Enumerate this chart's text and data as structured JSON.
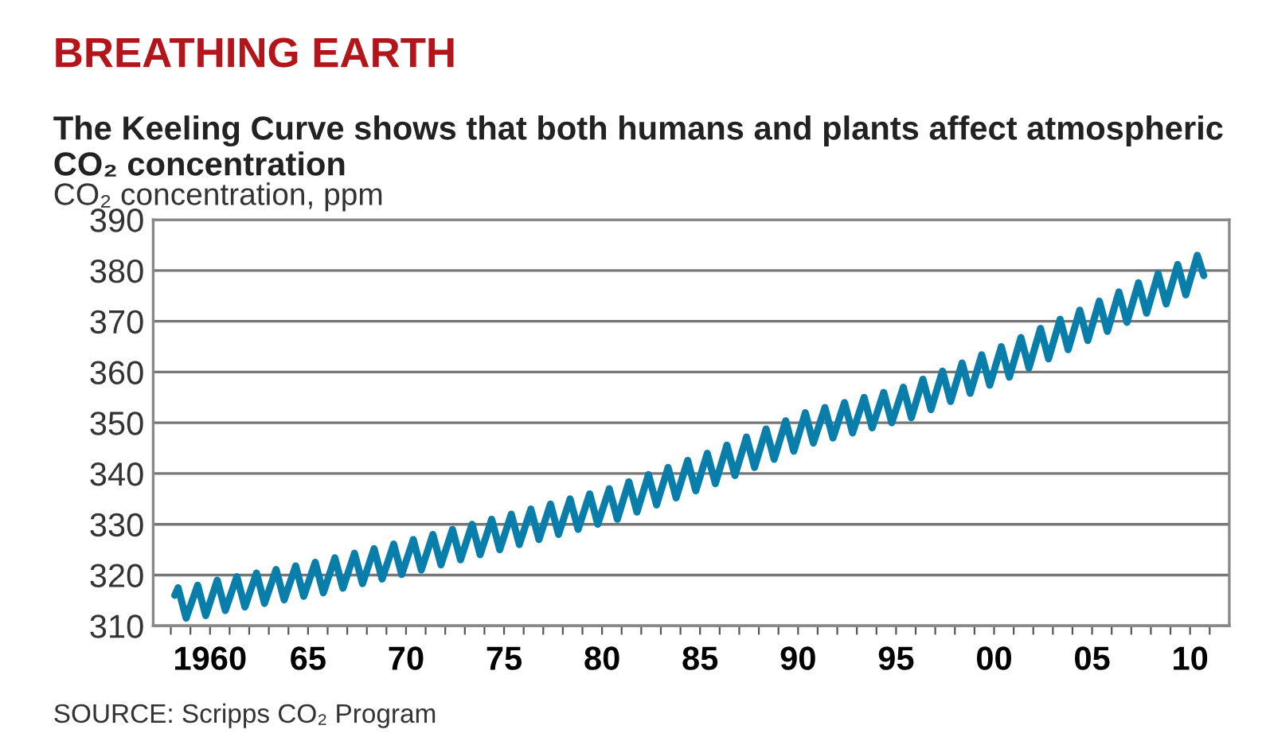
{
  "chart_data": {
    "type": "line",
    "title": "BREATHING EARTH",
    "subtitle": "The Keeling Curve shows that both humans and plants affect atmospheric CO₂ concentration",
    "ylabel": "CO₂ concentration, ppm",
    "annotations": [
      "SOURCE: Scripps CO₂ Program"
    ],
    "series": [
      {
        "color": "#0a7eab",
        "x": [
          1958.2,
          1958.37,
          1958.78,
          1959.37,
          1959.78,
          1960.37,
          1960.78,
          1961.37,
          1961.78,
          1962.37,
          1962.78,
          1963.37,
          1963.78,
          1964.37,
          1964.78,
          1965.37,
          1965.78,
          1966.37,
          1966.78,
          1967.37,
          1967.78,
          1968.37,
          1968.78,
          1969.37,
          1969.78,
          1970.37,
          1970.78,
          1971.37,
          1971.78,
          1972.37,
          1972.78,
          1973.37,
          1973.78,
          1974.37,
          1974.78,
          1975.37,
          1975.78,
          1976.37,
          1976.78,
          1977.37,
          1977.78,
          1978.37,
          1978.78,
          1979.37,
          1979.78,
          1980.37,
          1980.78,
          1981.37,
          1981.78,
          1982.37,
          1982.78,
          1983.37,
          1983.78,
          1984.37,
          1984.78,
          1985.37,
          1985.78,
          1986.37,
          1986.78,
          1987.37,
          1987.78,
          1988.37,
          1988.78,
          1989.37,
          1989.78,
          1990.37,
          1990.78,
          1991.37,
          1991.78,
          1992.37,
          1992.78,
          1993.37,
          1993.78,
          1994.37,
          1994.78,
          1995.37,
          1995.78,
          1996.37,
          1996.78,
          1997.37,
          1997.78,
          1998.37,
          1998.78,
          1999.37,
          1999.78,
          2000.37,
          2000.78,
          2001.37,
          2001.78,
          2002.37,
          2002.78,
          2003.37,
          2003.78,
          2004.37,
          2004.78,
          2005.37,
          2005.78,
          2006.37,
          2006.78,
          2007.37,
          2007.78,
          2008.37,
          2008.78,
          2009.37,
          2009.78,
          2010.37,
          2010.7
        ],
        "values": [
          316,
          317.5,
          311.5,
          318,
          312,
          319,
          313,
          319.7,
          313.7,
          320.4,
          314.4,
          321.1,
          315.1,
          321.8,
          315.8,
          322.5,
          316.5,
          323.4,
          317.4,
          324.3,
          318.3,
          325.2,
          319.2,
          326.1,
          320.1,
          327,
          321,
          328,
          322,
          329,
          323,
          330,
          324,
          331,
          325,
          332,
          326,
          333,
          327,
          334,
          328,
          335,
          329,
          336,
          330,
          337,
          331,
          338.4,
          332.4,
          339.8,
          333.8,
          341.2,
          335.2,
          342.6,
          336.6,
          344,
          338,
          345.6,
          339.6,
          347.2,
          341.2,
          348.8,
          342.8,
          350.4,
          344.4,
          352,
          346,
          353,
          347,
          354,
          348,
          355,
          349,
          356,
          350,
          357,
          351,
          358.6,
          352.6,
          360.2,
          354.2,
          361.8,
          355.8,
          363.4,
          357.4,
          365,
          359,
          366.8,
          360.8,
          368.6,
          362.6,
          370.4,
          364.4,
          372.2,
          366.2,
          374,
          368,
          375.8,
          369.8,
          377.6,
          371.6,
          379.4,
          373.4,
          381.2,
          375.2,
          383,
          379
        ]
      }
    ],
    "xlim": [
      1957.1,
      2012
    ],
    "xticks": [
      {
        "value": 1958,
        "label": null
      },
      {
        "value": 1959,
        "label": null
      },
      {
        "value": 1960,
        "label": "1960"
      },
      {
        "value": 1961,
        "label": null
      },
      {
        "value": 1962,
        "label": null
      },
      {
        "value": 1963,
        "label": null
      },
      {
        "value": 1964,
        "label": null
      },
      {
        "value": 1965,
        "label": "65"
      },
      {
        "value": 1966,
        "label": null
      },
      {
        "value": 1967,
        "label": null
      },
      {
        "value": 1968,
        "label": null
      },
      {
        "value": 1969,
        "label": null
      },
      {
        "value": 1970,
        "label": "70"
      },
      {
        "value": 1971,
        "label": null
      },
      {
        "value": 1972,
        "label": null
      },
      {
        "value": 1973,
        "label": null
      },
      {
        "value": 1974,
        "label": null
      },
      {
        "value": 1975,
        "label": "75"
      },
      {
        "value": 1976,
        "label": null
      },
      {
        "value": 1977,
        "label": null
      },
      {
        "value": 1978,
        "label": null
      },
      {
        "value": 1979,
        "label": null
      },
      {
        "value": 1980,
        "label": "80"
      },
      {
        "value": 1981,
        "label": null
      },
      {
        "value": 1982,
        "label": null
      },
      {
        "value": 1983,
        "label": null
      },
      {
        "value": 1984,
        "label": null
      },
      {
        "value": 1985,
        "label": "85"
      },
      {
        "value": 1986,
        "label": null
      },
      {
        "value": 1987,
        "label": null
      },
      {
        "value": 1988,
        "label": null
      },
      {
        "value": 1989,
        "label": null
      },
      {
        "value": 1990,
        "label": "90"
      },
      {
        "value": 1991,
        "label": null
      },
      {
        "value": 1992,
        "label": null
      },
      {
        "value": 1993,
        "label": null
      },
      {
        "value": 1994,
        "label": null
      },
      {
        "value": 1995,
        "label": "95"
      },
      {
        "value": 1996,
        "label": null
      },
      {
        "value": 1997,
        "label": null
      },
      {
        "value": 1998,
        "label": null
      },
      {
        "value": 1999,
        "label": null
      },
      {
        "value": 2000,
        "label": "00"
      },
      {
        "value": 2001,
        "label": null
      },
      {
        "value": 2002,
        "label": null
      },
      {
        "value": 2003,
        "label": null
      },
      {
        "value": 2004,
        "label": null
      },
      {
        "value": 2005,
        "label": "05"
      },
      {
        "value": 2006,
        "label": null
      },
      {
        "value": 2007,
        "label": null
      },
      {
        "value": 2008,
        "label": null
      },
      {
        "value": 2009,
        "label": null
      },
      {
        "value": 2010,
        "label": "10"
      },
      {
        "value": 2011,
        "label": null
      }
    ],
    "ylim": [
      310,
      390
    ],
    "yticks": [
      310,
      320,
      330,
      340,
      350,
      360,
      370,
      380,
      390
    ],
    "grid": "y",
    "marker": "none",
    "line_style": "solid"
  }
}
